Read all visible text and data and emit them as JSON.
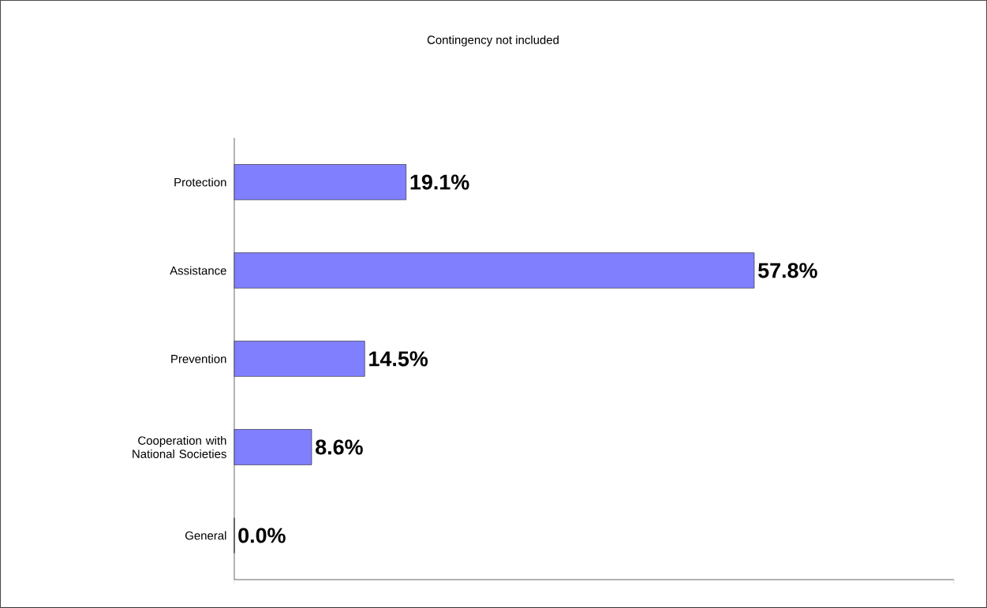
{
  "chart_data": {
    "type": "bar",
    "orientation": "horizontal",
    "title": "Contingency not included",
    "categories": [
      "Protection",
      "Assistance",
      "Prevention",
      "Cooperation with National Societies",
      "General"
    ],
    "values": [
      19.1,
      57.8,
      14.5,
      8.6,
      0.0
    ],
    "value_labels": [
      "19.1%",
      "57.8%",
      "14.5%",
      "8.6%",
      "0.0%"
    ],
    "color": "#8080ff",
    "xlim": [
      0,
      80
    ]
  }
}
